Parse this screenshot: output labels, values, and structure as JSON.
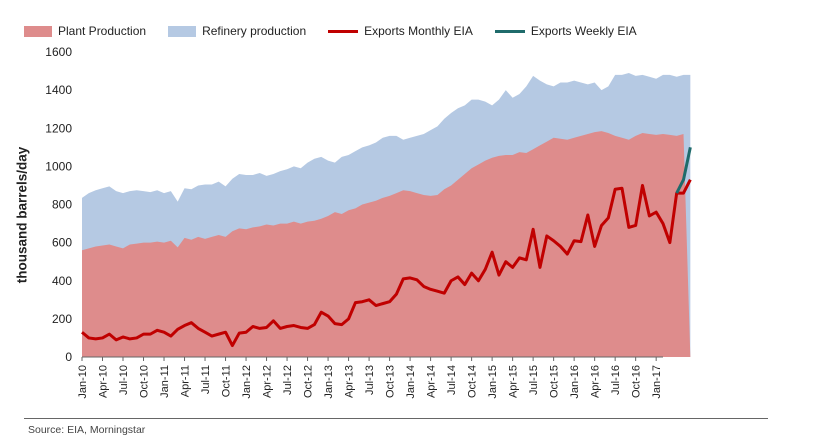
{
  "chart_data": {
    "type": "area",
    "ylabel": "thousand barrels/day",
    "xlabel": "",
    "ylim": [
      0,
      1600
    ],
    "yticks": [
      0,
      200,
      400,
      600,
      800,
      1000,
      1200,
      1400,
      1600
    ],
    "xticks": [
      "Jan-10",
      "Apr-10",
      "Jul-10",
      "Oct-10",
      "Jan-11",
      "Apr-11",
      "Jul-11",
      "Oct-11",
      "Jan-12",
      "Apr-12",
      "Jul-12",
      "Oct-12",
      "Jan-13",
      "Apr-13",
      "Jul-13",
      "Oct-13",
      "Jan-14",
      "Apr-14",
      "Jul-14",
      "Oct-14",
      "Jan-15",
      "Apr-15",
      "Jul-15",
      "Oct-15",
      "Jan-16",
      "Apr-16",
      "Jul-16",
      "Oct-16",
      "Jan-17"
    ],
    "x_start": "2010-01",
    "legend_position": "top",
    "grid": false,
    "series": [
      {
        "name": "Plant Production",
        "kind": "area",
        "color": "#de8c8c",
        "values": [
          560,
          570,
          580,
          585,
          590,
          580,
          570,
          590,
          595,
          600,
          600,
          605,
          600,
          610,
          575,
          625,
          615,
          630,
          620,
          630,
          640,
          630,
          660,
          675,
          670,
          680,
          685,
          695,
          690,
          700,
          700,
          710,
          700,
          710,
          715,
          725,
          740,
          760,
          750,
          770,
          780,
          800,
          810,
          820,
          835,
          845,
          860,
          875,
          870,
          860,
          850,
          845,
          850,
          880,
          900,
          930,
          960,
          990,
          1010,
          1030,
          1045,
          1055,
          1060,
          1060,
          1075,
          1070,
          1090,
          1110,
          1130,
          1150,
          1145,
          1140,
          1150,
          1160,
          1170,
          1180,
          1185,
          1175,
          1160,
          1150,
          1140,
          1160,
          1175,
          1170,
          1165,
          1170,
          1165,
          1160,
          1170,
          0
        ]
      },
      {
        "name": "Refinery production",
        "kind": "area-stacked-top",
        "color": "#b5c9e3",
        "values": [
          835,
          860,
          875,
          885,
          895,
          870,
          860,
          870,
          875,
          870,
          865,
          875,
          860,
          870,
          815,
          885,
          880,
          900,
          905,
          905,
          920,
          895,
          935,
          960,
          955,
          955,
          965,
          950,
          960,
          975,
          985,
          1000,
          990,
          1020,
          1040,
          1050,
          1030,
          1020,
          1050,
          1060,
          1080,
          1100,
          1110,
          1125,
          1150,
          1160,
          1160,
          1140,
          1150,
          1160,
          1170,
          1190,
          1210,
          1250,
          1280,
          1305,
          1320,
          1350,
          1350,
          1340,
          1320,
          1350,
          1400,
          1360,
          1380,
          1420,
          1475,
          1450,
          1430,
          1420,
          1440,
          1440,
          1450,
          1440,
          1430,
          1440,
          1400,
          1420,
          1480,
          1480,
          1490,
          1475,
          1480,
          1470,
          1460,
          1480,
          1480,
          1470,
          1480,
          1480
        ]
      },
      {
        "name": "Exports Monthly EIA",
        "kind": "line",
        "color": "#c00000",
        "values": [
          130,
          100,
          95,
          100,
          120,
          90,
          105,
          95,
          100,
          120,
          120,
          140,
          130,
          110,
          145,
          165,
          180,
          150,
          130,
          110,
          120,
          130,
          60,
          125,
          130,
          160,
          150,
          155,
          190,
          150,
          160,
          165,
          155,
          150,
          170,
          235,
          215,
          175,
          170,
          200,
          285,
          290,
          300,
          270,
          280,
          290,
          330,
          410,
          415,
          405,
          370,
          355,
          345,
          335,
          400,
          420,
          380,
          440,
          400,
          460,
          550,
          430,
          500,
          470,
          520,
          510,
          670,
          470,
          635,
          610,
          580,
          540,
          610,
          605,
          745,
          580,
          690,
          730,
          880,
          885,
          680,
          690,
          900,
          740,
          760,
          700,
          600,
          860,
          860,
          930
        ]
      },
      {
        "name": "Exports Weekly EIA",
        "kind": "line",
        "color": "#1f6b6b",
        "values_start_index": 87,
        "values": [
          860,
          930,
          1100
        ]
      }
    ]
  },
  "source": "Source: EIA, Morningstar"
}
